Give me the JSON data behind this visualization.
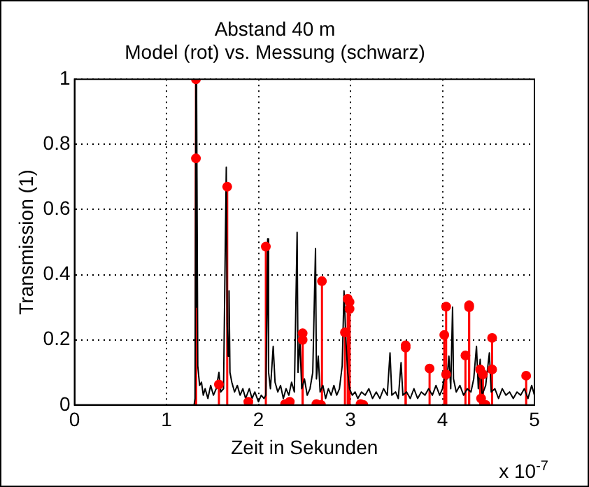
{
  "chart_data": {
    "type": "line",
    "title": [
      "Abstand 40 m",
      "Model (rot) vs. Messung (schwarz)"
    ],
    "xlabel": "Zeit in Sekunden",
    "ylabel": "Transmission (1)",
    "annotations": [
      "x 10$^{-7}$"
    ],
    "xlim": [
      0,
      5
    ],
    "xticks": [
      0,
      1,
      2,
      3,
      4,
      5
    ],
    "ylim": [
      0,
      1
    ],
    "yticks": [
      0,
      0.2,
      0.4,
      0.6,
      0.8,
      1
    ],
    "grid": true,
    "legend": false,
    "series": [
      {
        "color": "#000000",
        "marker": "none",
        "x": [
          0,
          1.3,
          1.31,
          1.32,
          1.325,
          1.33,
          1.34,
          1.36,
          1.38,
          1.4,
          1.42,
          1.45,
          1.48,
          1.51,
          1.54,
          1.57,
          1.59,
          1.62,
          1.65,
          1.66,
          1.67,
          1.68,
          1.69,
          1.71,
          1.74,
          1.77,
          1.8,
          1.83,
          1.86,
          1.9,
          1.93,
          1.96,
          2.0,
          2.03,
          2.06,
          2.08,
          2.1,
          2.11,
          2.13,
          2.16,
          2.18,
          2.21,
          2.24,
          2.27,
          2.3,
          2.33,
          2.36,
          2.39,
          2.42,
          2.43,
          2.45,
          2.47,
          2.5,
          2.53,
          2.56,
          2.59,
          2.62,
          2.63,
          2.65,
          2.67,
          2.7,
          2.73,
          2.76,
          2.79,
          2.82,
          2.85,
          2.88,
          2.91,
          2.93,
          2.95,
          2.97,
          2.99,
          3.02,
          3.05,
          3.08,
          3.12,
          3.16,
          3.2,
          3.24,
          3.28,
          3.32,
          3.36,
          3.4,
          3.43,
          3.45,
          3.49,
          3.52,
          3.55,
          3.57,
          3.61,
          3.65,
          3.69,
          3.73,
          3.77,
          3.81,
          3.85,
          3.89,
          3.93,
          3.97,
          4.0,
          4.03,
          4.05,
          4.07,
          4.09,
          4.11,
          4.12,
          4.15,
          4.19,
          4.23,
          4.27,
          4.31,
          4.34,
          4.37,
          4.39,
          4.41,
          4.43,
          4.47,
          4.51,
          4.53,
          4.57,
          4.61,
          4.65,
          4.69,
          4.73,
          4.77,
          4.81,
          4.85,
          4.89,
          4.93,
          4.97,
          5.0
        ],
        "values": [
          0,
          0,
          0.02,
          1.0,
          0.3,
          0.94,
          0.12,
          0.06,
          0.07,
          0.03,
          0.05,
          0.02,
          0.06,
          0.03,
          0.05,
          0.1,
          0.04,
          0.05,
          0.73,
          0.25,
          0.15,
          0.35,
          0.1,
          0.07,
          0.04,
          0.06,
          0.03,
          0.05,
          0.02,
          0.05,
          0.02,
          0.04,
          0.01,
          0.03,
          0.02,
          0.03,
          0.51,
          0.1,
          0.05,
          0.18,
          0.07,
          0.04,
          0.06,
          0.02,
          0.05,
          0.03,
          0.07,
          0.04,
          0.53,
          0.1,
          0.2,
          0.05,
          0.08,
          0.03,
          0.05,
          0.1,
          0.48,
          0.08,
          0.15,
          0.04,
          0.06,
          0.02,
          0.05,
          0.03,
          0.06,
          0.03,
          0.05,
          0.12,
          0.35,
          0.2,
          0.1,
          0.05,
          0.03,
          0.04,
          0.02,
          0.04,
          0.03,
          0.05,
          0.02,
          0.04,
          0.02,
          0.05,
          0.03,
          0.16,
          0.03,
          0.04,
          0.02,
          0.13,
          0.03,
          0.04,
          0.02,
          0.05,
          0.02,
          0.04,
          0.03,
          0.05,
          0.03,
          0.06,
          0.03,
          0.05,
          0.1,
          0.08,
          0.15,
          0.05,
          0.3,
          0.08,
          0.04,
          0.06,
          0.03,
          0.05,
          0.04,
          0.08,
          0.18,
          0.05,
          0.14,
          0.03,
          0.06,
          0.16,
          0.04,
          0.05,
          0.02,
          0.05,
          0.03,
          0.04,
          0.02,
          0.04,
          0.03,
          0.05,
          0.02,
          0.06,
          0.03
        ]
      },
      {
        "type": "lollipop",
        "color": "#ff0000",
        "marker": "circle",
        "x": [
          1.32,
          1.32,
          1.57,
          1.66,
          1.89,
          2.08,
          2.29,
          2.34,
          2.48,
          2.48,
          2.63,
          2.68,
          2.69,
          2.94,
          2.97,
          2.99,
          2.99,
          3.11,
          3.14,
          3.6,
          3.6,
          3.86,
          4.02,
          4.04,
          4.04,
          4.25,
          4.29,
          4.29,
          4.41,
          4.44,
          4.42,
          4.47,
          4.54,
          4.54,
          4.91
        ],
        "values": [
          1.0,
          0.757,
          0.063,
          0.67,
          0.01,
          0.486,
          0.003,
          0.01,
          0.22,
          0.2,
          0.003,
          0,
          0.38,
          0.223,
          0.326,
          0.316,
          0.295,
          0.003,
          0,
          0.183,
          0.176,
          0.112,
          0.215,
          0.302,
          0.094,
          0.152,
          0.306,
          0.3,
          0.109,
          0.094,
          0.02,
          0,
          0.206,
          0.109,
          0.09
        ]
      }
    ]
  }
}
